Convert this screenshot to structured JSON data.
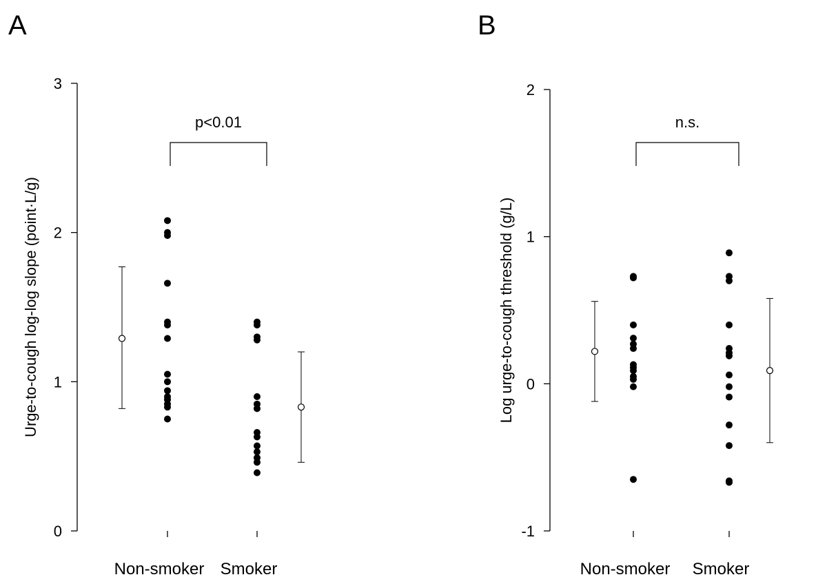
{
  "chart_data": [
    {
      "panel": "A",
      "type": "scatter",
      "ylabel": "Urge-to-cough log-log slope (point·L/g)",
      "ylim": [
        0,
        3
      ],
      "yticks": [
        "0",
        "1",
        "2",
        "3"
      ],
      "categories": [
        "Non-smoker",
        "Smoker"
      ],
      "series": [
        {
          "category": "Non-smoker",
          "values": [
            2.08,
            2.0,
            1.98,
            1.66,
            1.4,
            1.38,
            1.29,
            1.05,
            1.0,
            0.94,
            0.9,
            0.88,
            0.85,
            0.83,
            0.75
          ],
          "summary": {
            "mean": 1.29,
            "upper": 1.77,
            "lower": 0.82,
            "side": "left"
          }
        },
        {
          "category": "Smoker",
          "values": [
            1.4,
            1.38,
            1.3,
            1.28,
            0.9,
            0.85,
            0.82,
            0.66,
            0.63,
            0.57,
            0.53,
            0.49,
            0.46,
            0.39
          ],
          "summary": {
            "mean": 0.83,
            "upper": 1.2,
            "lower": 0.46,
            "side": "right"
          }
        }
      ],
      "annotation": "p<0.01"
    },
    {
      "panel": "B",
      "type": "scatter",
      "ylabel": "Log urge-to-cough threshold (g/L)",
      "ylim": [
        -1,
        2
      ],
      "yticks": [
        "-1",
        "0",
        "1",
        "2"
      ],
      "categories": [
        "Non-smoker",
        "Smoker"
      ],
      "series": [
        {
          "category": "Non-smoker",
          "values": [
            0.73,
            0.72,
            0.4,
            0.31,
            0.27,
            0.24,
            0.13,
            0.11,
            0.09,
            0.05,
            0.03,
            -0.02,
            -0.65
          ],
          "summary": {
            "mean": 0.22,
            "upper": 0.56,
            "lower": -0.12,
            "side": "left"
          }
        },
        {
          "category": "Smoker",
          "values": [
            0.89,
            0.73,
            0.7,
            0.4,
            0.24,
            0.21,
            0.19,
            0.06,
            -0.02,
            -0.09,
            -0.28,
            -0.42,
            -0.66,
            -0.67
          ],
          "summary": {
            "mean": 0.09,
            "upper": 0.58,
            "lower": -0.4,
            "side": "right"
          }
        }
      ],
      "annotation": "n.s."
    }
  ]
}
